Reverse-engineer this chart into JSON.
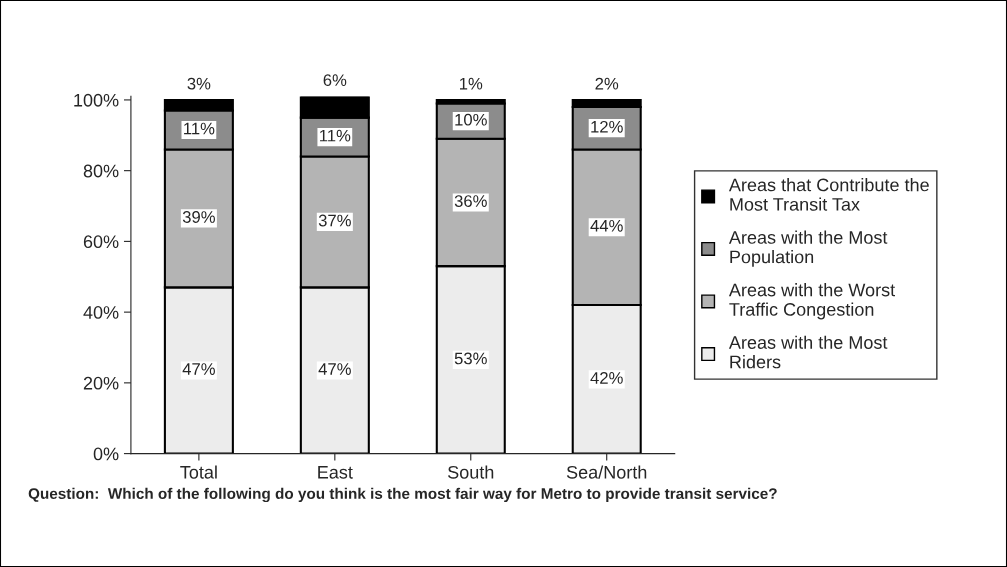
{
  "chart_data": {
    "type": "bar",
    "stacked": true,
    "categories": [
      "Total",
      "East",
      "South",
      "Sea/North"
    ],
    "series": [
      {
        "name": "Areas with the Most Riders",
        "color": "#ececec",
        "values": [
          47,
          47,
          53,
          42
        ],
        "value_labels": [
          "47%",
          "47%",
          "53%",
          "42%"
        ]
      },
      {
        "name": "Areas with the Worst Traffic Congestion",
        "color": "#b4b4b4",
        "values": [
          39,
          37,
          36,
          44
        ],
        "value_labels": [
          "39%",
          "37%",
          "36%",
          "44%"
        ]
      },
      {
        "name": "Areas with the Most Population",
        "color": "#8c8c8c",
        "values": [
          11,
          11,
          10,
          12
        ],
        "value_labels": [
          "11%",
          "11%",
          "10%",
          "12%"
        ]
      },
      {
        "name": "Areas that Contribute the Most Transit Tax",
        "color": "#000000",
        "values": [
          3,
          6,
          1,
          2
        ],
        "value_labels": [
          "3%",
          "6%",
          "1%",
          "2%"
        ]
      }
    ],
    "ylim": [
      0,
      101
    ],
    "yticks": [
      {
        "value": 0,
        "label": "0%"
      },
      {
        "value": 20,
        "label": "20%"
      },
      {
        "value": 40,
        "label": "40%"
      },
      {
        "value": 60,
        "label": "60%"
      },
      {
        "value": 80,
        "label": "80%"
      },
      {
        "value": 100,
        "label": "100%"
      }
    ],
    "xlabel": "Question:  Which of the following do you think is the most fair way for Metro to provide transit service?",
    "grid": false,
    "legend": "right"
  }
}
